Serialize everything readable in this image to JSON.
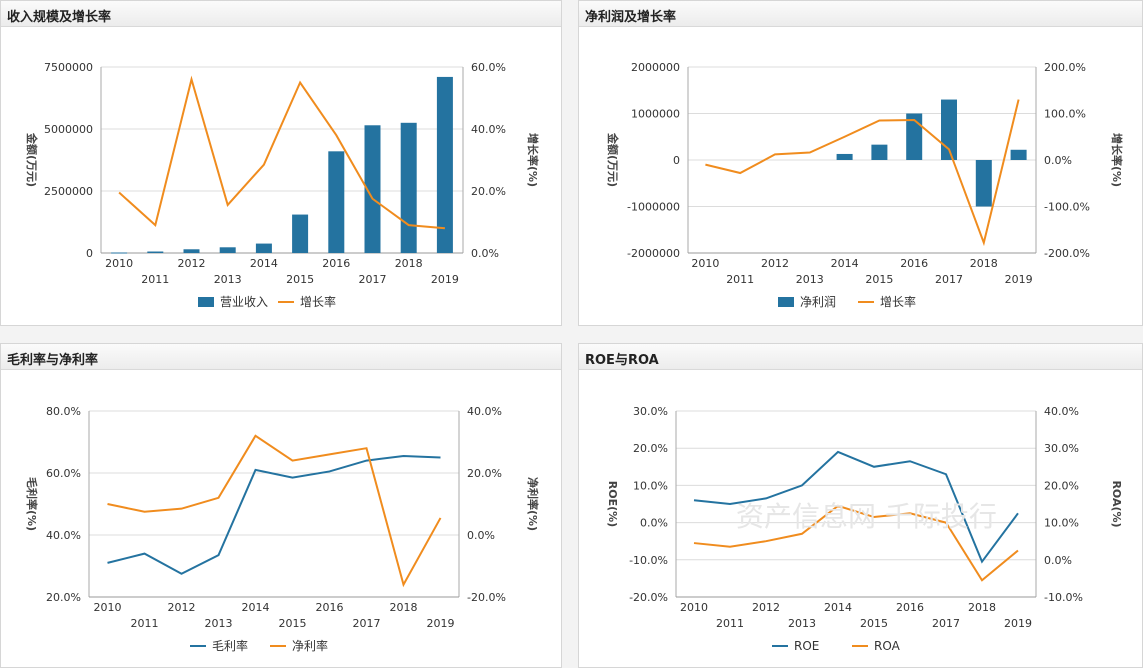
{
  "colors": {
    "blue": "#2473a0",
    "orange": "#f08c1e",
    "grid": "#dcdcdc",
    "axis": "#555555"
  },
  "watermark": "资产信息网 千际投行",
  "chart_data": [
    {
      "panel_title": "收入规模及增长率",
      "type": "bar+line",
      "categories": [
        "2010",
        "2011",
        "2012",
        "2013",
        "2014",
        "2015",
        "2016",
        "2017",
        "2018",
        "2019"
      ],
      "bar_series": {
        "name": "营业收入",
        "values": [
          20000,
          60000,
          150000,
          230000,
          380000,
          1550000,
          4100000,
          5150000,
          5250000,
          7100000
        ]
      },
      "line_series": {
        "name": "增长率",
        "values": [
          19.5,
          9.0,
          56.0,
          15.5,
          28.5,
          55.0,
          38.0,
          17.5,
          9.0,
          8.0
        ]
      },
      "left_axis": {
        "label": "金额(万元)",
        "ticks": [
          "7500000",
          "5000000",
          "2500000",
          "0"
        ],
        "range": [
          0,
          7500000
        ]
      },
      "right_axis": {
        "label": "增长率(%)",
        "ticks": [
          "60.0%",
          "40.0%",
          "20.0%",
          "0.0%"
        ],
        "range": [
          0,
          60
        ]
      },
      "legend": "bottom"
    },
    {
      "panel_title": "净利润及增长率",
      "type": "bar+line",
      "categories": [
        "2010",
        "2011",
        "2012",
        "2013",
        "2014",
        "2015",
        "2016",
        "2017",
        "2018",
        "2019"
      ],
      "bar_series": {
        "name": "净利润",
        "values": [
          0,
          0,
          0,
          0,
          130000,
          330000,
          1000000,
          1300000,
          -1000000,
          220000
        ]
      },
      "line_series": {
        "name": "增长率",
        "values": [
          -10,
          -28,
          12,
          16,
          50,
          85,
          86,
          23,
          -178,
          130
        ]
      },
      "left_axis": {
        "label": "金额(万元)",
        "ticks": [
          "2000000",
          "1000000",
          "0",
          "-1000000",
          "-2000000"
        ],
        "range": [
          -2000000,
          2000000
        ]
      },
      "right_axis": {
        "label": "增长率(%)",
        "ticks": [
          "200.0%",
          "100.0%",
          "0.0%",
          "-100.0%",
          "-200.0%"
        ],
        "range": [
          -200,
          200
        ]
      },
      "legend": "bottom"
    },
    {
      "panel_title": "毛利率与净利率",
      "type": "line",
      "categories": [
        "2010",
        "2011",
        "2012",
        "2013",
        "2014",
        "2015",
        "2016",
        "2017",
        "2018",
        "2019"
      ],
      "left_series": {
        "name": "毛利率",
        "values": [
          31.0,
          34.0,
          27.5,
          33.5,
          61.0,
          58.5,
          60.5,
          64.0,
          65.5,
          65.0
        ]
      },
      "right_series": {
        "name": "净利率",
        "values": [
          10.0,
          7.5,
          8.5,
          12.0,
          32.0,
          24.0,
          26.0,
          28.0,
          -16.0,
          5.5
        ]
      },
      "left_axis": {
        "label": "毛利率(%)",
        "ticks": [
          "80.0%",
          "60.0%",
          "40.0%",
          "20.0%"
        ],
        "range": [
          20,
          80
        ]
      },
      "right_axis": {
        "label": "净利率(%)",
        "ticks": [
          "40.0%",
          "20.0%",
          "0.0%",
          "-20.0%"
        ],
        "range": [
          -20,
          40
        ]
      },
      "legend": "bottom"
    },
    {
      "panel_title": "ROE与ROA",
      "type": "line",
      "categories": [
        "2010",
        "2011",
        "2012",
        "2013",
        "2014",
        "2015",
        "2016",
        "2017",
        "2018",
        "2019"
      ],
      "left_series": {
        "name": "ROE",
        "values": [
          6.0,
          5.0,
          6.5,
          10.0,
          19.0,
          15.0,
          16.5,
          13.0,
          -10.5,
          2.5
        ]
      },
      "right_series": {
        "name": "ROA",
        "values": [
          4.5,
          3.5,
          5.0,
          7.0,
          14.5,
          11.5,
          12.5,
          10.0,
          -5.5,
          2.5
        ]
      },
      "left_axis": {
        "label": "ROE(%)",
        "ticks": [
          "30.0%",
          "20.0%",
          "10.0%",
          "0.0%",
          "-10.0%",
          "-20.0%"
        ],
        "range": [
          -20,
          30
        ]
      },
      "right_axis": {
        "label": "ROA(%)",
        "ticks": [
          "40.0%",
          "30.0%",
          "20.0%",
          "10.0%",
          "0.0%",
          "-10.0%"
        ],
        "range": [
          -10,
          40
        ]
      },
      "legend": "bottom"
    }
  ]
}
